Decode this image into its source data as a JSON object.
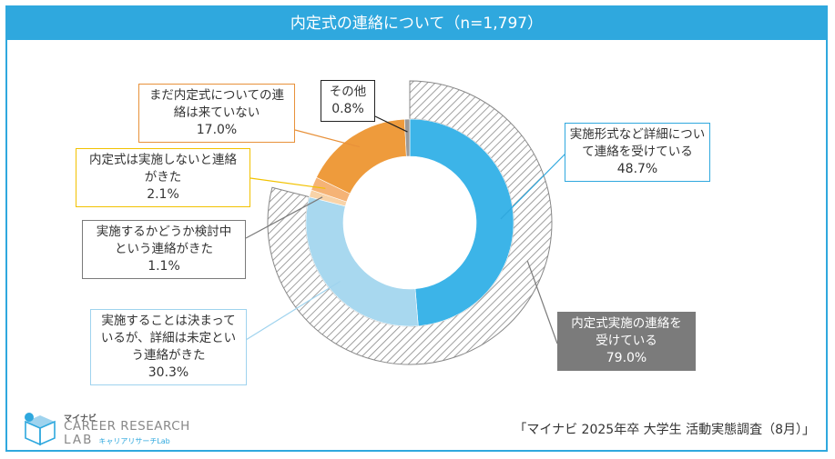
{
  "title": "内定式の連絡について（n=1,797）",
  "chart_data": {
    "type": "pie",
    "subtype": "donut",
    "slices": [
      {
        "key": "format",
        "label": [
          "実施形式など詳細につい",
          "て連絡を受けている"
        ],
        "pct_label": "48.7%",
        "value": 48.7,
        "color": "#3cb4e8"
      },
      {
        "key": "decided",
        "label": [
          "実施することは決まって",
          "いるが、詳細は未定とい",
          "う連絡がきた"
        ],
        "pct_label": "30.3%",
        "value": 30.3,
        "color": "#a8d8ef"
      },
      {
        "key": "considering",
        "label": [
          "実施するかどうか検討中",
          "という連絡がきた"
        ],
        "pct_label": "1.1%",
        "value": 1.1,
        "color": "#f8d3a8"
      },
      {
        "key": "noceremony",
        "label": [
          "内定式は実施しないと連絡",
          "がきた"
        ],
        "pct_label": "2.1%",
        "value": 2.1,
        "color": "#f5b376"
      },
      {
        "key": "notyet",
        "label": [
          "まだ内定式についての連",
          "絡は来ていない"
        ],
        "pct_label": "17.0%",
        "value": 17.0,
        "color": "#ee9b3c"
      },
      {
        "key": "other",
        "label": [
          "その他"
        ],
        "pct_label": "0.8%",
        "value": 0.8,
        "color": "#9a9a9a"
      }
    ],
    "outer_ring": {
      "label": [
        "内定式実施の連絡を",
        "受けている"
      ],
      "pct_label": "79.0%",
      "value": 79.0,
      "pattern": "diagonal-hatch"
    }
  },
  "logo": {
    "brand_small": "マイナビ",
    "line1": "CAREER RESEARCH",
    "line2": "LAB",
    "sub": "キャリアリサーチLab"
  },
  "source": "「マイナビ 2025年卒 大学生 活動実態調査（8月）」"
}
